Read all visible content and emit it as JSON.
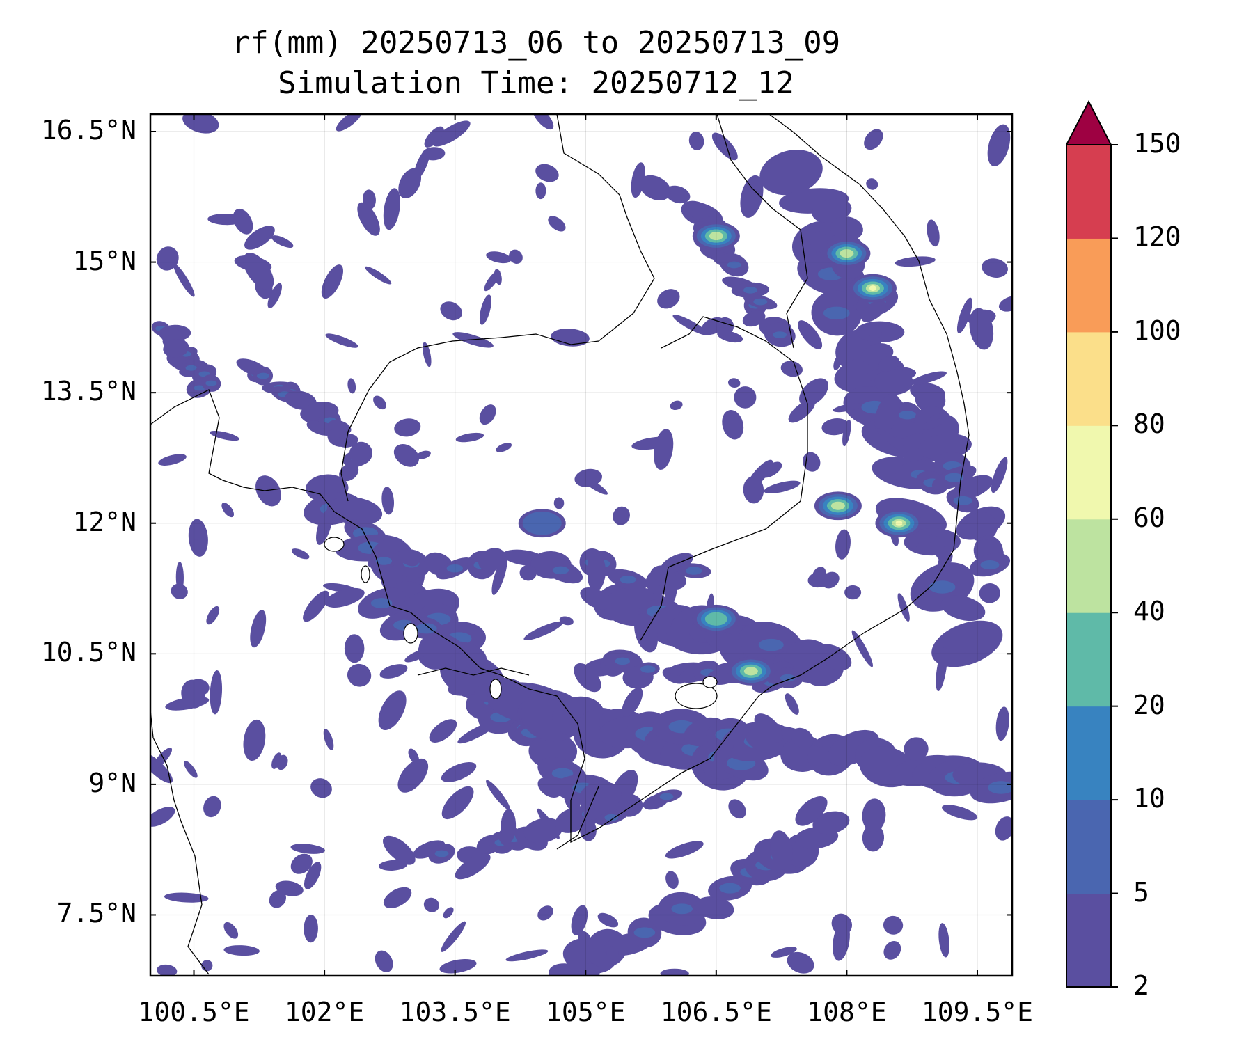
{
  "title": "rf(mm) 20250713_06 to 20250713_09",
  "subtitle": "Simulation Time: 20250712_12",
  "map": {
    "lon_range": [
      100.0,
      109.9
    ],
    "lat_range": [
      6.8,
      16.7
    ],
    "lat_labels": [
      "16.5°N",
      "15°N",
      "13.5°N",
      "12°N",
      "10.5°N",
      "9°N",
      "7.5°N"
    ],
    "lat_values": [
      16.5,
      15.0,
      13.5,
      12.0,
      10.5,
      9.0,
      7.5
    ],
    "lon_labels": [
      "100.5°E",
      "102°E",
      "103.5°E",
      "105°E",
      "106.5°E",
      "108°E",
      "109.5°E"
    ],
    "lon_values": [
      100.5,
      102.0,
      103.5,
      105.0,
      106.5,
      108.0,
      109.5
    ],
    "grid": true
  },
  "colorbar": {
    "levels": [
      "2",
      "5",
      "10",
      "20",
      "40",
      "60",
      "80",
      "100",
      "120",
      "150"
    ],
    "colors": [
      "#5a4fa0",
      "#4a66b0",
      "#3883c0",
      "#5fbaa8",
      "#bde3a0",
      "#f0f8ae",
      "#fbdf8a",
      "#f99c58",
      "#d63e50",
      "#9e0142"
    ],
    "extend": "max"
  },
  "rain_areas": [
    {
      "lon": 104.5,
      "lat": 12.0,
      "level": 1
    },
    {
      "lon": 106.5,
      "lat": 10.9,
      "level": 3
    },
    {
      "lon": 107.9,
      "lat": 12.2,
      "level": 4
    },
    {
      "lon": 108.6,
      "lat": 12.0,
      "level": 5
    },
    {
      "lon": 108.0,
      "lat": 15.1,
      "level": 4
    },
    {
      "lon": 108.3,
      "lat": 14.7,
      "level": 5
    },
    {
      "lon": 106.5,
      "lat": 15.3,
      "level": 4
    },
    {
      "lon": 106.9,
      "lat": 10.3,
      "level": 4
    }
  ]
}
